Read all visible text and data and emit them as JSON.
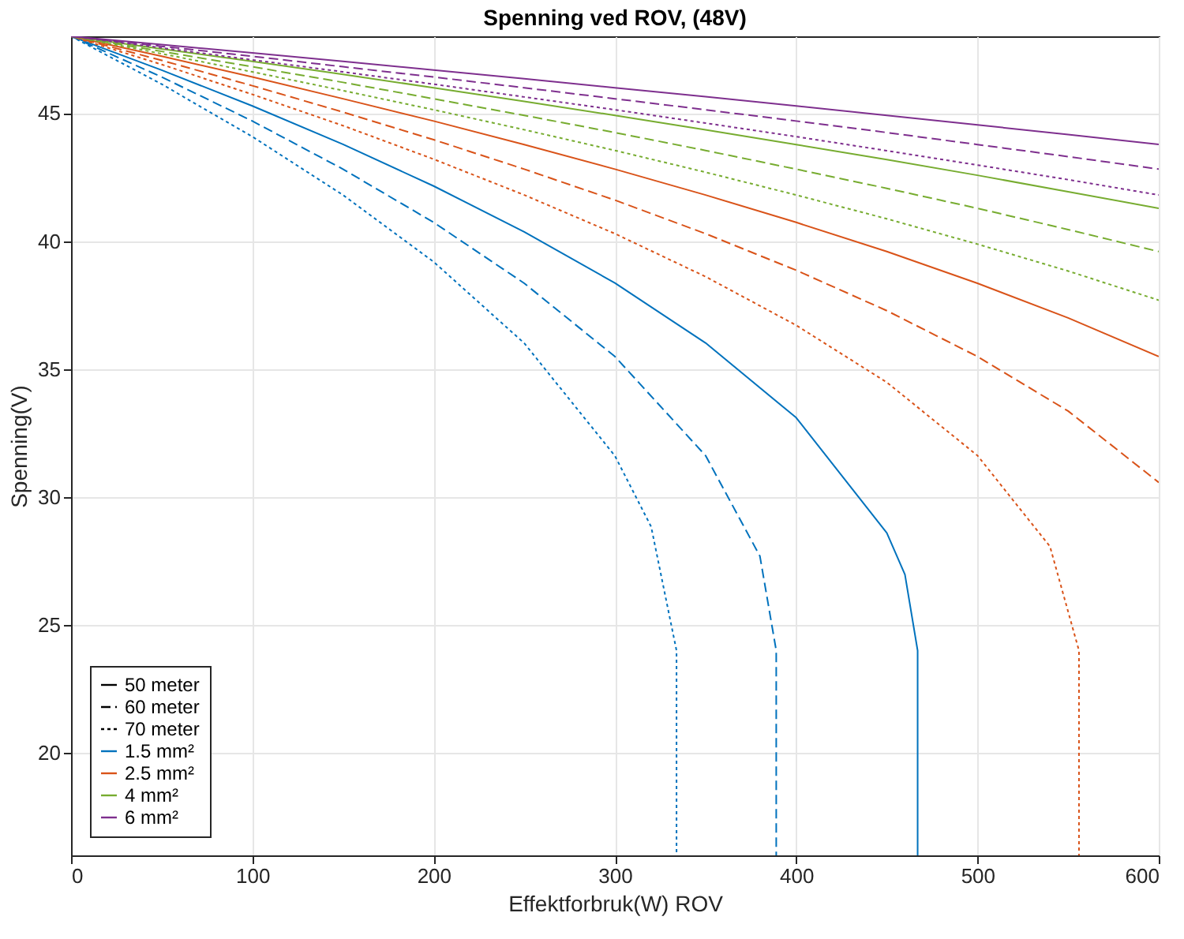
{
  "chart_data": {
    "type": "line",
    "title": "Spenning ved ROV, (48V)",
    "xlabel": "Effektforbruk(W) ROV",
    "ylabel": "Spenning(V)",
    "xlim": [
      0,
      600
    ],
    "xticks": [
      0,
      100,
      200,
      300,
      400,
      500,
      600
    ],
    "ylim": [
      16,
      48
    ],
    "yticks": [
      20,
      25,
      30,
      35,
      40,
      45
    ],
    "grid": true,
    "legend": "bottom left",
    "series": [
      {
        "color": "#0072bd",
        "line_style": "solid",
        "x": [
          0,
          50,
          100,
          150,
          200,
          250,
          300,
          350,
          400,
          450,
          460,
          467,
          467
        ],
        "values": [
          48,
          46.68,
          45.28,
          43.78,
          42.15,
          40.36,
          38.36,
          36.02,
          33.1,
          28.6,
          26.97,
          24,
          16
        ]
      },
      {
        "color": "#0072bd",
        "line_style": "dashed",
        "x": [
          0,
          50,
          100,
          150,
          200,
          250,
          300,
          350,
          380,
          389,
          389
        ],
        "values": [
          48,
          46.41,
          44.69,
          42.81,
          40.73,
          38.35,
          35.49,
          31.62,
          27.69,
          24,
          16
        ]
      },
      {
        "color": "#0072bd",
        "line_style": "dotted",
        "x": [
          0,
          50,
          100,
          150,
          200,
          250,
          300,
          320,
          334,
          334
        ],
        "values": [
          48,
          46.13,
          44.08,
          41.8,
          39.19,
          36.01,
          31.61,
          28.84,
          24,
          16
        ]
      },
      {
        "color": "#d95319",
        "line_style": "solid",
        "x": [
          0,
          50,
          100,
          150,
          200,
          250,
          300,
          350,
          400,
          450,
          500,
          550,
          600
        ],
        "values": [
          48,
          47.22,
          46.41,
          45.56,
          44.69,
          43.77,
          42.81,
          41.8,
          40.73,
          39.59,
          38.35,
          37.0,
          35.49
        ]
      },
      {
        "color": "#d95319",
        "line_style": "dashed",
        "x": [
          0,
          50,
          100,
          150,
          200,
          250,
          300,
          350,
          400,
          450,
          500,
          550,
          600
        ],
        "values": [
          48,
          47.06,
          46.07,
          45.04,
          43.96,
          42.81,
          41.6,
          40.29,
          38.86,
          37.28,
          35.49,
          33.36,
          30.57
        ]
      },
      {
        "color": "#d95319",
        "line_style": "dotted",
        "x": [
          0,
          50,
          100,
          150,
          200,
          250,
          300,
          350,
          400,
          450,
          500,
          540,
          556,
          556
        ],
        "values": [
          48,
          46.9,
          45.73,
          44.51,
          43.2,
          41.8,
          40.29,
          38.61,
          36.71,
          34.48,
          31.62,
          28.07,
          24,
          16
        ]
      },
      {
        "color": "#77ac30",
        "line_style": "solid",
        "x": [
          0,
          50,
          100,
          150,
          200,
          250,
          300,
          350,
          400,
          450,
          500,
          550,
          600
        ],
        "values": [
          48,
          47.51,
          47.02,
          46.51,
          45.99,
          45.46,
          44.91,
          44.35,
          43.77,
          43.18,
          42.57,
          41.93,
          41.28
        ]
      },
      {
        "color": "#77ac30",
        "line_style": "dashed",
        "x": [
          0,
          50,
          100,
          150,
          200,
          250,
          300,
          350,
          400,
          450,
          500,
          550,
          600
        ],
        "values": [
          48,
          47.41,
          46.81,
          46.2,
          45.56,
          44.91,
          44.24,
          43.54,
          42.81,
          42.06,
          41.28,
          40.45,
          39.59
        ]
      },
      {
        "color": "#77ac30",
        "line_style": "dotted",
        "x": [
          0,
          50,
          100,
          150,
          200,
          250,
          300,
          350,
          400,
          450,
          500,
          550,
          600
        ],
        "values": [
          48,
          47.32,
          46.61,
          45.88,
          45.13,
          44.35,
          43.54,
          42.69,
          41.8,
          40.87,
          39.88,
          38.83,
          37.69
        ]
      },
      {
        "color": "#7e2f8e",
        "line_style": "solid",
        "x": [
          0,
          50,
          100,
          150,
          200,
          250,
          300,
          350,
          400,
          450,
          500,
          550,
          600
        ],
        "values": [
          48,
          47.68,
          47.35,
          47.02,
          46.68,
          46.34,
          45.99,
          45.64,
          45.28,
          44.91,
          44.54,
          44.16,
          43.78
        ]
      },
      {
        "color": "#7e2f8e",
        "line_style": "dashed",
        "x": [
          0,
          50,
          100,
          150,
          200,
          250,
          300,
          350,
          400,
          450,
          500,
          550,
          600
        ],
        "values": [
          48,
          47.61,
          47.22,
          46.81,
          46.41,
          45.99,
          45.56,
          45.13,
          44.69,
          44.24,
          43.77,
          43.3,
          42.81
        ]
      },
      {
        "color": "#7e2f8e",
        "line_style": "dotted",
        "x": [
          0,
          50,
          100,
          150,
          200,
          250,
          300,
          350,
          400,
          450,
          500,
          550,
          600
        ],
        "values": [
          48,
          47.55,
          47.08,
          46.61,
          46.13,
          45.63,
          45.13,
          44.61,
          44.08,
          43.53,
          42.97,
          42.4,
          41.8
        ]
      },
      {
        "name": "50 meter",
        "color": "#000000",
        "line_style": "solid"
      },
      {
        "name": "60 meter",
        "color": "#000000",
        "line_style": "dashed"
      },
      {
        "name": "70 meter",
        "color": "#000000",
        "line_style": "dotted"
      },
      {
        "name": "1.5 mm²",
        "color": "#0072bd",
        "line_style": "solid"
      },
      {
        "name": "2.5 mm²",
        "color": "#d95319",
        "line_style": "solid"
      },
      {
        "name": "4 mm²",
        "color": "#77ac30",
        "line_style": "solid"
      },
      {
        "name": "6 mm²",
        "color": "#7e2f8e",
        "line_style": "solid"
      }
    ]
  }
}
